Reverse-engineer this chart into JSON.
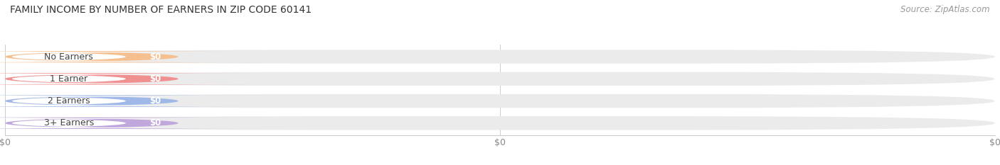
{
  "title": "FAMILY INCOME BY NUMBER OF EARNERS IN ZIP CODE 60141",
  "source": "Source: ZipAtlas.com",
  "categories": [
    "No Earners",
    "1 Earner",
    "2 Earners",
    "3+ Earners"
  ],
  "values": [
    0,
    0,
    0,
    0
  ],
  "bar_colors": [
    "#f5c090",
    "#f09090",
    "#a0b8e8",
    "#c0a8dc"
  ],
  "bar_track_color": "#ebebeb",
  "title_fontsize": 10,
  "source_fontsize": 8.5,
  "label_fontsize": 9,
  "value_fontsize": 8.5,
  "tick_fontsize": 9,
  "background_color": "#ffffff",
  "xlim_max": 1.0
}
